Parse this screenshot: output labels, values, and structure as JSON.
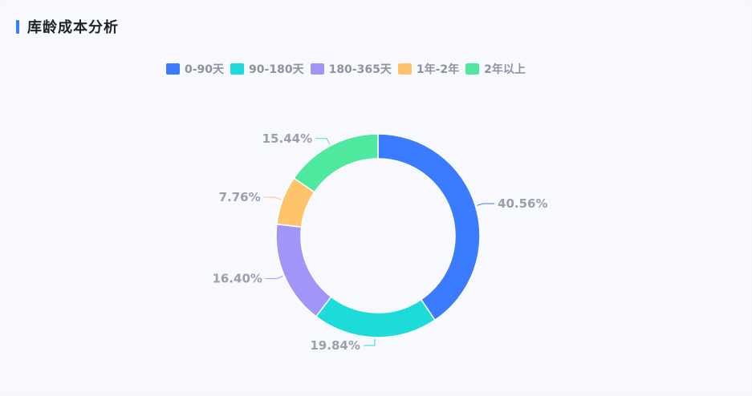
{
  "header": {
    "title": "库龄成本分析"
  },
  "colors": {
    "accent": "#3b7bff"
  },
  "chart_data": {
    "type": "pie",
    "variant": "donut",
    "title": "库龄成本分析",
    "legend_position": "top",
    "categories": [
      "0-90天",
      "90-180天",
      "180-365天",
      "1年-2年",
      "2年以上"
    ],
    "values": [
      40.56,
      19.84,
      16.4,
      7.76,
      15.44
    ],
    "value_labels": [
      "40.56%",
      "19.84%",
      "16.40%",
      "7.76%",
      "15.44%"
    ],
    "colors": [
      "#3b7bff",
      "#1ddbd9",
      "#a195f7",
      "#ffc46b",
      "#4ee89f"
    ]
  }
}
